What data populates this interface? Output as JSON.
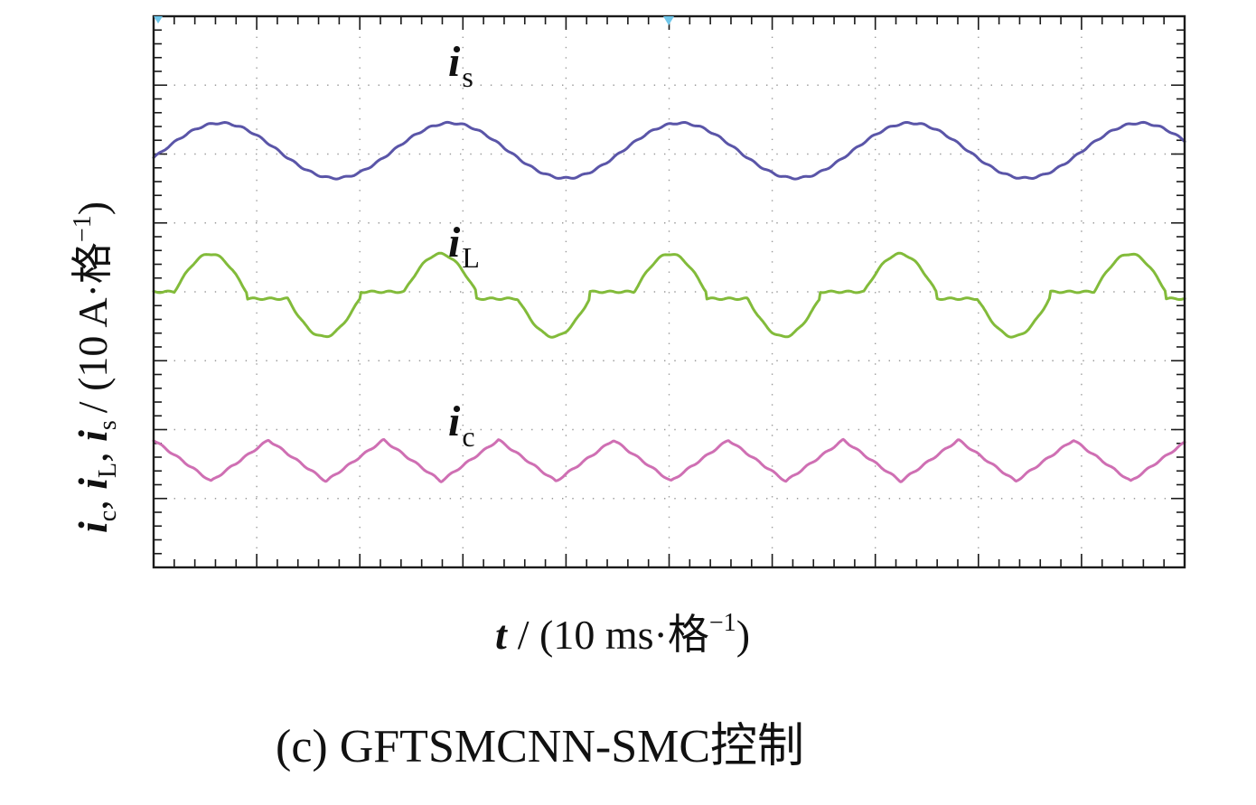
{
  "chart_data": {
    "type": "line",
    "caption": "(c) GFTSMCNN-SMC控制",
    "xlabel": {
      "var": "t",
      "unit_prefix": "/ (10 ms·格",
      "unit_sup": "−1",
      "unit_suffix": ")"
    },
    "ylabel": {
      "text": "i",
      "sub_c": "c",
      "sub_L": "L",
      "sub_s": "s",
      "unit_prefix": "/ (10 A·格",
      "unit_sup": "−1",
      "unit_suffix": ")"
    },
    "divisions": {
      "x": 10,
      "y": 8
    },
    "xlim": [
      0,
      100
    ],
    "ylim": [
      0,
      8
    ],
    "grid": true,
    "colors": {
      "is": "#5a55a8",
      "iL": "#82bb3a",
      "ic": "#cf6fb3",
      "frame": "#1a1a1a",
      "grid": "#9a9a9a",
      "marker": "#6ec6ea"
    },
    "series": [
      {
        "id": "is",
        "label_main": "i",
        "label_sub": "s",
        "waveform": "sine",
        "offset_div": 6.05,
        "amplitude_div": 0.4,
        "period_ms": 22.3,
        "peak_time_ms": 6.5
      },
      {
        "id": "iL",
        "label_main": "i",
        "label_sub": "L",
        "waveform": "pulsed-sine",
        "offset_div": 4.05,
        "plateau_high_div": 4.0,
        "plateau_low_div": 3.9,
        "peak_div": 4.55,
        "trough_div": 3.35,
        "period_ms": 22.3,
        "peak_time_ms": 5.5,
        "trough_time_ms": 16.5,
        "bump_width_ms": 7.0
      },
      {
        "id": "ic",
        "label_main": "i",
        "label_sub": "c",
        "waveform": "triangular",
        "offset_div": 1.55,
        "amplitude_div": 0.3,
        "period_ms": 11.15,
        "peak_times_ms": [
          5.0,
          13.8
        ]
      }
    ]
  }
}
